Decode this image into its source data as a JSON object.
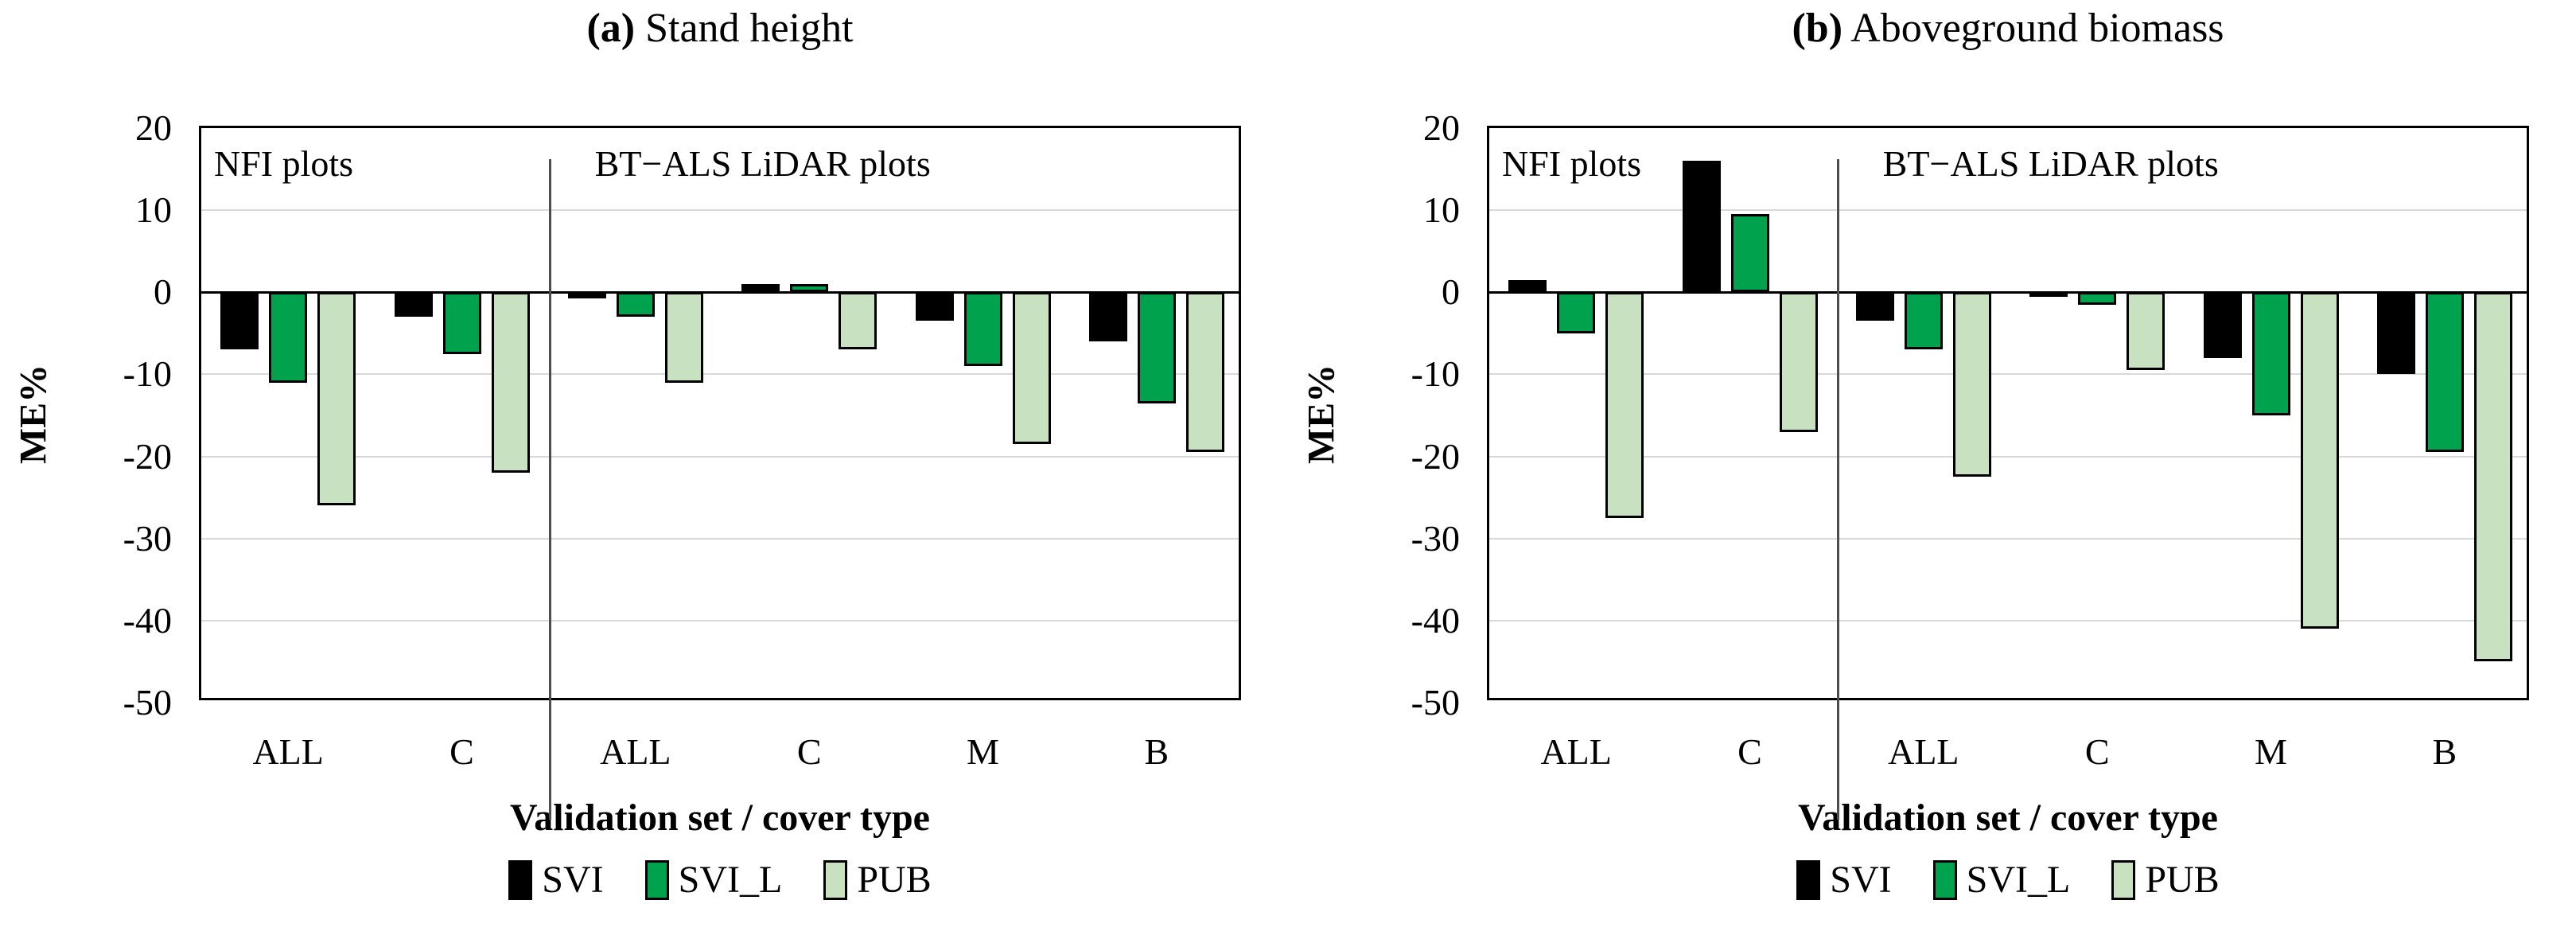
{
  "axis": {
    "y_label": "ME%",
    "x_label": "Validation set / cover type"
  },
  "legend": {
    "items": [
      {
        "label": "SVI",
        "color": "#000000"
      },
      {
        "label": "SVI_L",
        "color": "#00A24E"
      },
      {
        "label": "PUB",
        "color": "#C8E1C0"
      }
    ]
  },
  "colors": {
    "gridline": "#D9D9D9",
    "axis_line": "#000000",
    "separator": "#4d4d4d"
  },
  "chart_data": [
    {
      "type": "bar",
      "title": "(a) Stand height",
      "title_prefix": "(a)",
      "title_text": " Stand height",
      "categories": [
        "ALL",
        "C",
        "ALL",
        "C",
        "M",
        "B"
      ],
      "group_labels": {
        "left": "NFI plots",
        "right": "BT−ALS LiDAR plots"
      },
      "separator_after_category_index": 1,
      "series": [
        {
          "name": "SVI",
          "color": "#000000",
          "values": [
            -7,
            -3,
            -0.7,
            1,
            -3.5,
            -6
          ]
        },
        {
          "name": "SVI_L",
          "color": "#00A24E",
          "values": [
            -11,
            -7.5,
            -3,
            1,
            -9,
            -13.5
          ]
        },
        {
          "name": "PUB",
          "color": "#C8E1C0",
          "values": [
            -26,
            -22,
            -11,
            -7,
            -18.5,
            -19.5
          ]
        }
      ],
      "xlabel": "Validation set / cover type",
      "ylabel": "ME%",
      "ylim": [
        -50,
        20
      ],
      "ytick_step": 10,
      "grid": true,
      "legend_position": "bottom"
    },
    {
      "type": "bar",
      "title": "(b) Aboveground biomass",
      "title_prefix": "(b)",
      "title_text": " Aboveground biomass",
      "categories": [
        "ALL",
        "C",
        "ALL",
        "C",
        "M",
        "B"
      ],
      "group_labels": {
        "left": "NFI plots",
        "right": "BT−ALS LiDAR plots"
      },
      "separator_after_category_index": 1,
      "series": [
        {
          "name": "SVI",
          "color": "#000000",
          "values": [
            1.5,
            16,
            -3.5,
            -0.5,
            -8,
            -10
          ]
        },
        {
          "name": "SVI_L",
          "color": "#00A24E",
          "values": [
            -5,
            9.5,
            -7,
            -1.5,
            -15,
            -19.5
          ]
        },
        {
          "name": "PUB",
          "color": "#C8E1C0",
          "values": [
            -27.5,
            -17,
            -22.5,
            -9.5,
            -41,
            -45
          ]
        }
      ],
      "xlabel": "Validation set / cover type",
      "ylabel": "ME%",
      "ylim": [
        -50,
        20
      ],
      "ytick_step": 10,
      "grid": true,
      "legend_position": "bottom"
    }
  ]
}
